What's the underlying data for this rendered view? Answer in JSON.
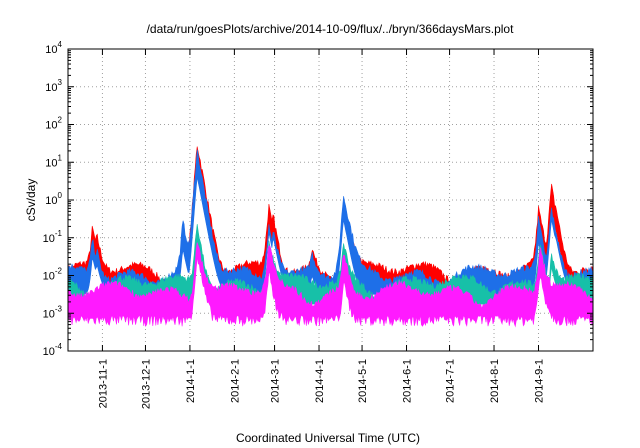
{
  "chart_data": {
    "type": "area",
    "title": "/data/run/goesPlots/archive/2014-10-09/flux/../bryn/366daysMars.plot",
    "xlabel": "Coordinated Universal Time (UTC)",
    "ylabel": "cSv/day",
    "y_scale": "log",
    "ylim": [
      0.0001,
      10000
    ],
    "xlim": [
      "2013-10-08",
      "2014-10-09"
    ],
    "grid": true,
    "legend": "none",
    "y_ticks": [
      {
        "base": "10",
        "exp": "-4",
        "value": 0.0001
      },
      {
        "base": "10",
        "exp": "-3",
        "value": 0.001
      },
      {
        "base": "10",
        "exp": "-2",
        "value": 0.01
      },
      {
        "base": "10",
        "exp": "-1",
        "value": 0.1
      },
      {
        "base": "10",
        "exp": "0",
        "value": 1
      },
      {
        "base": "10",
        "exp": "1",
        "value": 10
      },
      {
        "base": "10",
        "exp": "2",
        "value": 100
      },
      {
        "base": "10",
        "exp": "3",
        "value": 1000
      },
      {
        "base": "10",
        "exp": "4",
        "value": 10000
      }
    ],
    "x_ticks": [
      {
        "label": "2013-11-1",
        "date": "2013-11-01"
      },
      {
        "label": "2013-12-1",
        "date": "2013-12-01"
      },
      {
        "label": "2014-1-1",
        "date": "2014-01-01"
      },
      {
        "label": "2014-2-1",
        "date": "2014-02-01"
      },
      {
        "label": "2014-3-1",
        "date": "2014-03-01"
      },
      {
        "label": "2014-4-1",
        "date": "2014-04-01"
      },
      {
        "label": "2014-5-1",
        "date": "2014-05-01"
      },
      {
        "label": "2014-6-1",
        "date": "2014-06-01"
      },
      {
        "label": "2014-7-1",
        "date": "2014-07-01"
      },
      {
        "label": "2014-8-1",
        "date": "2014-08-01"
      },
      {
        "label": "2014-9-1",
        "date": "2014-09-01"
      }
    ],
    "series": [
      {
        "color": "#ff0000",
        "baseline": 0.011,
        "points": [
          [
            "2013-10-08",
            0.012
          ],
          [
            "2013-10-25",
            0.11
          ],
          [
            "2013-10-28",
            0.08
          ],
          [
            "2013-12-27",
            0.2
          ],
          [
            "2014-01-06",
            20
          ],
          [
            "2014-01-09",
            1.0
          ],
          [
            "2014-02-25",
            0.5
          ],
          [
            "2014-02-28",
            0.35
          ],
          [
            "2014-03-27",
            0.04
          ],
          [
            "2014-04-18",
            1.1
          ],
          [
            "2014-09-01",
            0.3
          ],
          [
            "2014-09-10",
            1.5
          ],
          [
            "2014-09-13",
            0.5
          ],
          [
            "2014-10-09",
            0.013
          ]
        ]
      },
      {
        "color": "#1e6fe8",
        "baseline": 0.009,
        "points": [
          [
            "2013-10-08",
            0.009
          ],
          [
            "2013-10-25",
            0.09
          ],
          [
            "2013-10-28",
            0.06
          ],
          [
            "2013-12-27",
            0.15
          ],
          [
            "2014-01-06",
            12
          ],
          [
            "2014-01-09",
            0.8
          ],
          [
            "2014-02-25",
            0.4
          ],
          [
            "2014-02-28",
            0.3
          ],
          [
            "2014-03-27",
            0.03
          ],
          [
            "2014-04-18",
            0.9
          ],
          [
            "2014-09-01",
            0.22
          ],
          [
            "2014-09-10",
            0.9
          ],
          [
            "2014-09-13",
            0.3
          ],
          [
            "2014-10-09",
            0.011
          ]
        ]
      },
      {
        "color": "#17c0a8",
        "baseline": 0.005,
        "points": [
          [
            "2013-10-08",
            0.005
          ],
          [
            "2014-01-06",
            0.25
          ],
          [
            "2014-02-25",
            0.08
          ],
          [
            "2014-04-18",
            0.05
          ],
          [
            "2014-09-02",
            0.1
          ],
          [
            "2014-09-10",
            0.05
          ],
          [
            "2014-10-09",
            0.006
          ]
        ]
      },
      {
        "color": "#ff1aff",
        "baseline": 0.003,
        "points": [
          [
            "2013-10-08",
            0.003
          ],
          [
            "2014-01-06",
            0.15
          ],
          [
            "2014-01-20",
            0.0001
          ],
          [
            "2014-02-25",
            0.05
          ],
          [
            "2014-04-18",
            0.03
          ],
          [
            "2014-06-28",
            0.0001
          ],
          [
            "2014-09-02",
            0.05
          ],
          [
            "2014-10-09",
            0.003
          ]
        ]
      }
    ]
  }
}
